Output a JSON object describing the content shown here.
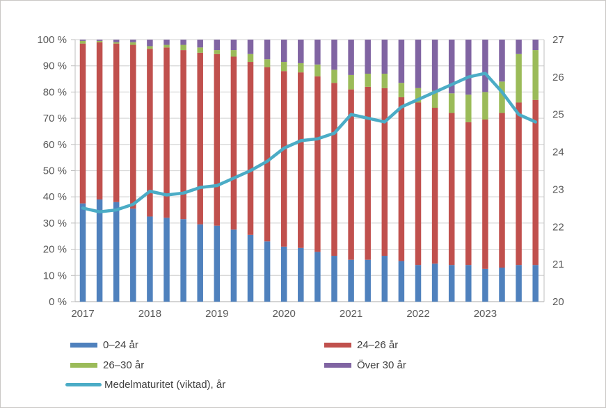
{
  "chart_data": {
    "type": "bar",
    "subtype": "stacked-percent-with-line",
    "x_year_labels": [
      "2017",
      "2018",
      "2019",
      "2020",
      "2021",
      "2022",
      "2023"
    ],
    "bars_per_year": 4,
    "series": [
      {
        "name": "0–24 år",
        "color": "#4F81BD",
        "values": [
          37.5,
          39,
          38,
          35.5,
          32.5,
          32,
          31.5,
          29.5,
          29,
          27.5,
          25.5,
          23,
          21,
          20.5,
          19,
          17.5,
          16,
          16,
          17.5,
          15.5,
          14,
          14.5,
          14,
          14,
          12.5,
          13,
          14,
          14
        ]
      },
      {
        "name": "24–26 år",
        "color": "#C0504D",
        "values": [
          61,
          60,
          60.5,
          62.5,
          64,
          65,
          64.5,
          65.5,
          65.5,
          66,
          66,
          66.5,
          67,
          67,
          67,
          66,
          65,
          66,
          64,
          62.5,
          62,
          59.5,
          58,
          54.5,
          57,
          59,
          62,
          63
        ]
      },
      {
        "name": "26–30 år",
        "color": "#9BBB59",
        "values": [
          1,
          0.5,
          0.5,
          1,
          1,
          1,
          2,
          2,
          1.5,
          2.5,
          3,
          3,
          3.5,
          3.5,
          4.5,
          5,
          5.5,
          5,
          5.5,
          5.5,
          5.5,
          6.5,
          7.5,
          10.5,
          10.5,
          12,
          18.5,
          19
        ]
      },
      {
        "name": "Över 30 år",
        "color": "#8064A2",
        "values": [
          0.5,
          0.5,
          1,
          1,
          2.5,
          2,
          2,
          3,
          4,
          4,
          5.5,
          7.5,
          8.5,
          9,
          9.5,
          11.5,
          13.5,
          13,
          13,
          16.5,
          18.5,
          19.5,
          20.5,
          21,
          20,
          16,
          5.5,
          4
        ]
      }
    ],
    "line": {
      "name": "Medelmaturitet (viktad), år",
      "color": "#4BACC6",
      "axis": "right",
      "values": [
        22.5,
        22.4,
        22.45,
        22.6,
        22.95,
        22.85,
        22.9,
        23.05,
        23.1,
        23.3,
        23.5,
        23.75,
        24.1,
        24.3,
        24.35,
        24.5,
        25.0,
        24.9,
        24.8,
        25.2,
        25.4,
        25.6,
        25.8,
        26.0,
        26.1,
        25.6,
        25.0,
        24.8
      ]
    },
    "left_axis": {
      "min": 0,
      "max": 100,
      "step": 10,
      "tick_labels": [
        "0 %",
        "10 %",
        "20 %",
        "30 %",
        "40 %",
        "50 %",
        "60 %",
        "70 %",
        "80 %",
        "90 %",
        "100 %"
      ]
    },
    "right_axis": {
      "min": 20,
      "max": 27,
      "step": 1,
      "tick_labels": [
        "20",
        "21",
        "22",
        "23",
        "24",
        "25",
        "26",
        "27"
      ]
    },
    "grid": true,
    "legend_position": "bottom",
    "style": {
      "gridline_color": "#D9D9D9",
      "axis_line_color": "#BFBFBF",
      "axis_text_color": "#595959",
      "background": "#FFFFFF"
    }
  },
  "legend": {
    "items": [
      {
        "label": "0–24 år",
        "color": "#4F81BD",
        "type": "bar"
      },
      {
        "label": "24–26 år",
        "color": "#C0504D",
        "type": "bar"
      },
      {
        "label": "26–30 år",
        "color": "#9BBB59",
        "type": "bar"
      },
      {
        "label": "Över 30 år",
        "color": "#8064A2",
        "type": "bar"
      },
      {
        "label": "Medelmaturitet (viktad), år",
        "color": "#4BACC6",
        "type": "line"
      }
    ]
  }
}
